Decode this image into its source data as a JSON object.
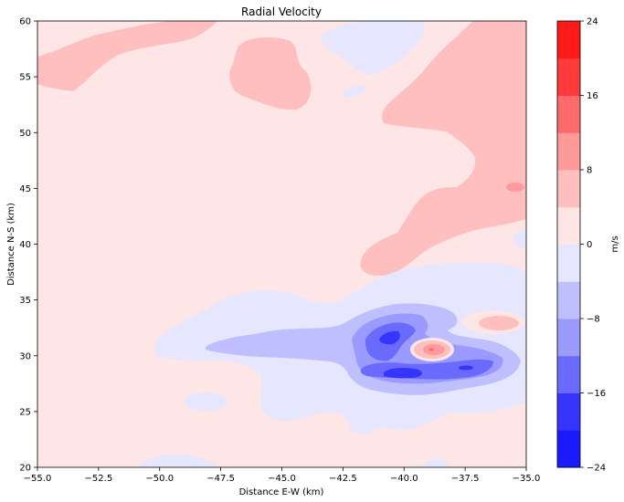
{
  "chart_data": {
    "type": "contour",
    "title": "Radial Velocity",
    "xlabel": "Distance E-W (km)",
    "ylabel": "Distance N-S (km)",
    "xlim": [
      -55,
      -35
    ],
    "ylim": [
      20,
      60
    ],
    "x_ticks": [
      -55,
      -52.5,
      -50,
      -47.5,
      -45,
      -42.5,
      -40,
      -37.5,
      -35
    ],
    "x_tick_labels": [
      "−55.0",
      "−52.5",
      "−50.0",
      "−47.5",
      "−45.0",
      "−42.5",
      "−40.0",
      "−37.5",
      "−35.0"
    ],
    "y_ticks": [
      20,
      25,
      30,
      35,
      40,
      45,
      50,
      55,
      60
    ],
    "y_tick_labels": [
      "20",
      "25",
      "30",
      "35",
      "40",
      "45",
      "50",
      "55",
      "60"
    ],
    "grid": false,
    "colorbar": {
      "label": "m/s",
      "range": [
        -24,
        24
      ],
      "levels": [
        -24,
        -20,
        -16,
        -12,
        -8,
        -4,
        0,
        4,
        8,
        12,
        16,
        20,
        24
      ],
      "ticks": [
        -24,
        -16,
        -8,
        0,
        8,
        16,
        24
      ],
      "tick_labels": [
        "−24",
        "−16",
        "−8",
        "0",
        "8",
        "16",
        "24"
      ],
      "colors": [
        "#1a1aff",
        "#3535ff",
        "#6a6aff",
        "#9a9aff",
        "#bfbfff",
        "#e6e6ff",
        "#ffe6e6",
        "#ffbfbf",
        "#ff9a9a",
        "#ff6a6a",
        "#ff3a3a",
        "#ff1a1a"
      ]
    },
    "background_value_range": [
      0,
      4
    ],
    "features": [
      {
        "kind": "outbound",
        "range": [
          4,
          8
        ],
        "approx_extent_km": {
          "x": [
            -55,
            -48
          ],
          "y": [
            54,
            60
          ]
        }
      },
      {
        "kind": "outbound",
        "range": [
          4,
          8
        ],
        "approx_extent_km": {
          "x": [
            -46.5,
            -44.5
          ],
          "y": [
            53,
            58.5
          ]
        }
      },
      {
        "kind": "outbound",
        "range": [
          4,
          8
        ],
        "approx_extent_km": {
          "x": [
            -42.5,
            -35
          ],
          "y": [
            38,
            60
          ]
        }
      },
      {
        "kind": "outbound",
        "range": [
          8,
          12
        ],
        "approx_center_km": [
          -35.5,
          45
        ]
      },
      {
        "kind": "inbound",
        "range": [
          -4,
          0
        ],
        "approx_extent_km": {
          "x": [
            -51,
            -35
          ],
          "y": [
            23,
            36
          ]
        }
      },
      {
        "kind": "inbound",
        "range": [
          -8,
          -4
        ],
        "approx_extent_km": {
          "x": [
            -47.5,
            -35.5
          ],
          "y": [
            26,
            34
          ]
        }
      },
      {
        "kind": "inbound",
        "range": [
          -12,
          -8
        ],
        "approx_extent_km": {
          "x": [
            -42,
            -36.5
          ],
          "y": [
            26.5,
            33
          ]
        }
      },
      {
        "kind": "inbound",
        "range": [
          -16,
          -12
        ],
        "approx_extent_km": {
          "x": [
            -41.5,
            -37
          ],
          "y": [
            27.5,
            32.5
          ]
        }
      },
      {
        "kind": "outbound",
        "range": [
          8,
          12
        ],
        "approx_center_km": [
          -39,
          30.5
        ]
      },
      {
        "kind": "outbound",
        "range": [
          4,
          8
        ],
        "approx_center_km": [
          -36.2,
          33
        ]
      }
    ]
  }
}
